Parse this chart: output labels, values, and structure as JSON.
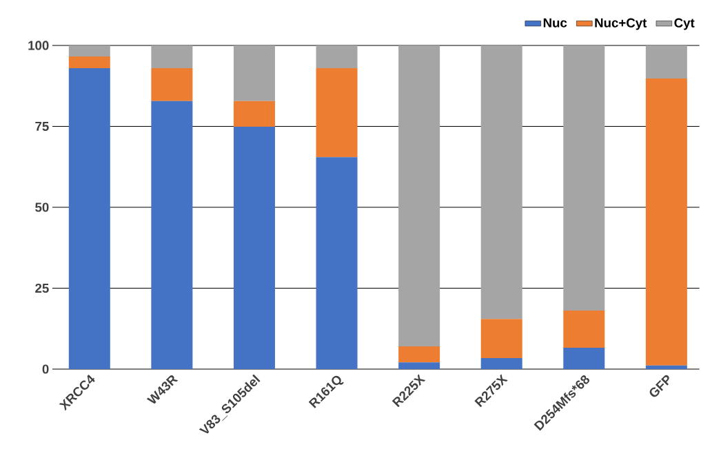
{
  "chart_data": {
    "type": "bar",
    "stacked": true,
    "categories": [
      "XRCC4",
      "W43R",
      "V83_S105del",
      "R161Q",
      "R225X",
      "R275X",
      "D254Mfs*68",
      "GFP"
    ],
    "series": [
      {
        "name": "Nuc",
        "color": "#4472c4",
        "values": [
          93.0,
          82.8,
          74.9,
          65.5,
          2.1,
          3.4,
          6.6,
          1.1
        ]
      },
      {
        "name": "Nuc+Cyt",
        "color": "#ed7d31",
        "values": [
          3.6,
          10.2,
          7.9,
          27.5,
          4.9,
          12.1,
          11.5,
          88.7
        ]
      },
      {
        "name": "Cyt",
        "color": "#a5a5a5",
        "values": [
          3.4,
          7.0,
          17.2,
          7.0,
          93.0,
          84.5,
          81.9,
          10.2
        ]
      }
    ],
    "ylim": [
      0,
      100
    ],
    "yticks": [
      0,
      25,
      50,
      75,
      100
    ],
    "grid": "y",
    "legend": "top right"
  }
}
